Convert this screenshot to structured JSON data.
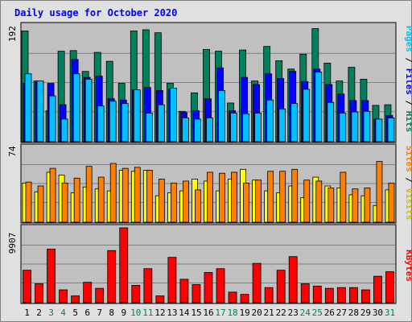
{
  "title": "Daily usage for October 2020",
  "colors": {
    "hits": "#00805c",
    "files": "#0000ff",
    "pages": "#00c0ff",
    "visits": "#ffff00",
    "sites": "#ff8000",
    "kbytes": "#ff0000",
    "weekend_label": "#00805c",
    "weekday_label": "#000000",
    "title": "#0000ff",
    "panel_bg": "#c0c0c0",
    "outer_bg": "#e0e0e0"
  },
  "legends": {
    "top": [
      "Pages",
      "Files",
      "Hits"
    ],
    "middle": [
      "Sites",
      "Visits"
    ],
    "bottom": [
      "KBytes"
    ]
  },
  "chart_data": [
    {
      "type": "bar",
      "panel": "top",
      "ymax_label": "192",
      "ylim": [
        0,
        192
      ],
      "x": [
        1,
        2,
        3,
        4,
        5,
        6,
        7,
        8,
        9,
        10,
        11,
        12,
        13,
        14,
        15,
        16,
        17,
        18,
        19,
        20,
        21,
        22,
        23,
        24,
        25,
        26,
        27,
        28,
        29,
        30,
        31
      ],
      "series": [
        {
          "name": "Hits",
          "values": [
            186,
            102,
            52,
            152,
            153,
            118,
            150,
            135,
            98,
            186,
            188,
            183,
            98,
            51,
            82,
            155,
            152,
            65,
            154,
            102,
            160,
            136,
            122,
            147,
            190,
            132,
            102,
            125,
            105,
            61,
            62
          ]
        },
        {
          "name": "Files",
          "values": [
            98,
            100,
            98,
            62,
            138,
            108,
            110,
            72,
            70,
            87,
            91,
            86,
            88,
            49,
            52,
            72,
            124,
            52,
            108,
            96,
            114,
            106,
            118,
            101,
            122,
            96,
            80,
            69,
            69,
            38,
            44
          ]
        },
        {
          "name": "Pages",
          "values": [
            114,
            102,
            77,
            38,
            114,
            105,
            60,
            68,
            64,
            87,
            48,
            62,
            90,
            40,
            38,
            40,
            86,
            48,
            47,
            48,
            70,
            55,
            64,
            88,
            117,
            66,
            48,
            50,
            51,
            38,
            40
          ]
        }
      ]
    },
    {
      "type": "bar",
      "panel": "middle",
      "ymax_label": "74",
      "ylim": [
        0,
        74
      ],
      "x": [
        1,
        2,
        3,
        4,
        5,
        6,
        7,
        8,
        9,
        10,
        11,
        12,
        13,
        14,
        15,
        16,
        17,
        18,
        19,
        20,
        21,
        22,
        23,
        24,
        25,
        26,
        27,
        28,
        29,
        30,
        31
      ],
      "series": [
        {
          "name": "Visits",
          "values": [
            40,
            31,
            51,
            48,
            30,
            36,
            34,
            32,
            53,
            52,
            53,
            27,
            30,
            32,
            44,
            42,
            32,
            44,
            54,
            43,
            32,
            30,
            37,
            25,
            46,
            37,
            35,
            28,
            27,
            17,
            33
          ]
        },
        {
          "name": "Sites",
          "values": [
            41,
            37,
            55,
            40,
            45,
            57,
            46,
            60,
            55,
            56,
            53,
            44,
            40,
            42,
            33,
            51,
            50,
            51,
            40,
            43,
            52,
            52,
            54,
            43,
            42,
            35,
            51,
            34,
            35,
            62,
            40
          ]
        }
      ]
    },
    {
      "type": "bar",
      "panel": "bottom",
      "ymax_label": "9907",
      "ylim": [
        0,
        9907
      ],
      "x": [
        1,
        2,
        3,
        4,
        5,
        6,
        7,
        8,
        9,
        10,
        11,
        12,
        13,
        14,
        15,
        16,
        17,
        18,
        19,
        20,
        21,
        22,
        23,
        24,
        25,
        26,
        27,
        28,
        29,
        30,
        31
      ],
      "series": [
        {
          "name": "KBytes",
          "values": [
            4300,
            2500,
            7100,
            1700,
            900,
            2700,
            1900,
            6900,
            9907,
            2300,
            4500,
            900,
            6000,
            3100,
            2400,
            4000,
            4500,
            1400,
            1100,
            5200,
            2000,
            4300,
            6100,
            2500,
            2200,
            1900,
            2000,
            2000,
            1700,
            3500,
            4100
          ]
        }
      ]
    }
  ]
}
